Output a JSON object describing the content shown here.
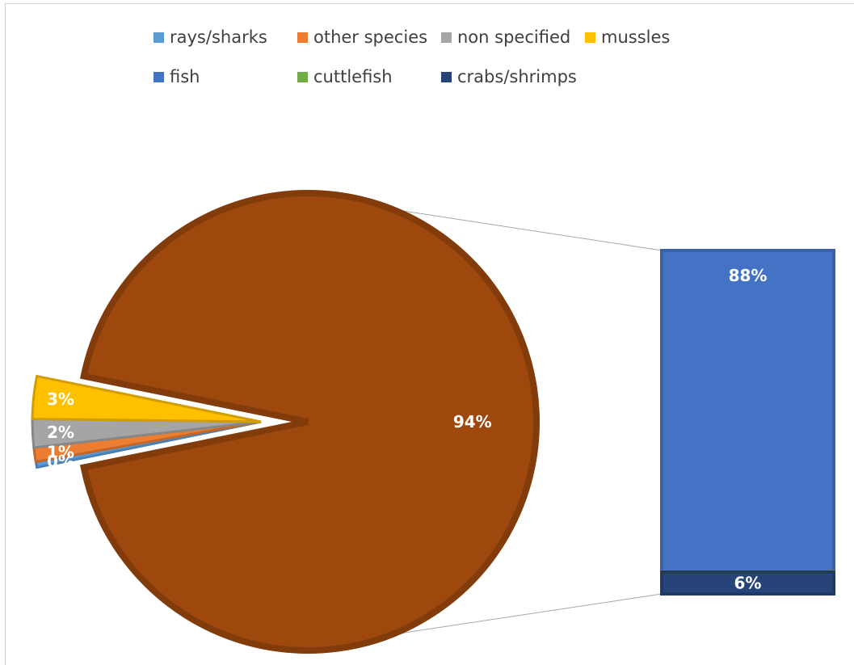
{
  "chart_data": {
    "type": "pie",
    "subtype": "bar-of-pie",
    "title": "",
    "legend_position": "top",
    "pie": {
      "slices": [
        {
          "name": "rays/sharks",
          "label": "0%",
          "value": 0.4,
          "color": "#5b9bd5"
        },
        {
          "name": "other species",
          "label": "1%",
          "value": 1,
          "color": "#ed7d31"
        },
        {
          "name": "non specified",
          "label": "2%",
          "value": 2,
          "color": "#a5a5a5"
        },
        {
          "name": "mussles",
          "label": "3%",
          "value": 3,
          "color": "#ffc000"
        },
        {
          "name": "",
          "label": "94%",
          "value": 93.6,
          "color": "#9e480e"
        }
      ]
    },
    "bar": {
      "segments": [
        {
          "name": "fish",
          "label": "88%",
          "value": 88,
          "color": "#4472c4"
        },
        {
          "name": "cuttlefish",
          "label": "",
          "value": 0.2,
          "color": "#70ad47"
        },
        {
          "name": "crabs/shrimps",
          "label": "6%",
          "value": 6,
          "color": "#264478"
        }
      ]
    },
    "legend": [
      {
        "label": "rays/sharks",
        "color": "#5b9bd5"
      },
      {
        "label": "other species",
        "color": "#ed7d31"
      },
      {
        "label": "non specified",
        "color": "#a5a5a5"
      },
      {
        "label": "mussles",
        "color": "#ffc000"
      },
      {
        "label": "fish",
        "color": "#4472c4"
      },
      {
        "label": "cuttlefish",
        "color": "#70ad47"
      },
      {
        "label": "crabs/shrimps",
        "color": "#264478"
      }
    ]
  }
}
